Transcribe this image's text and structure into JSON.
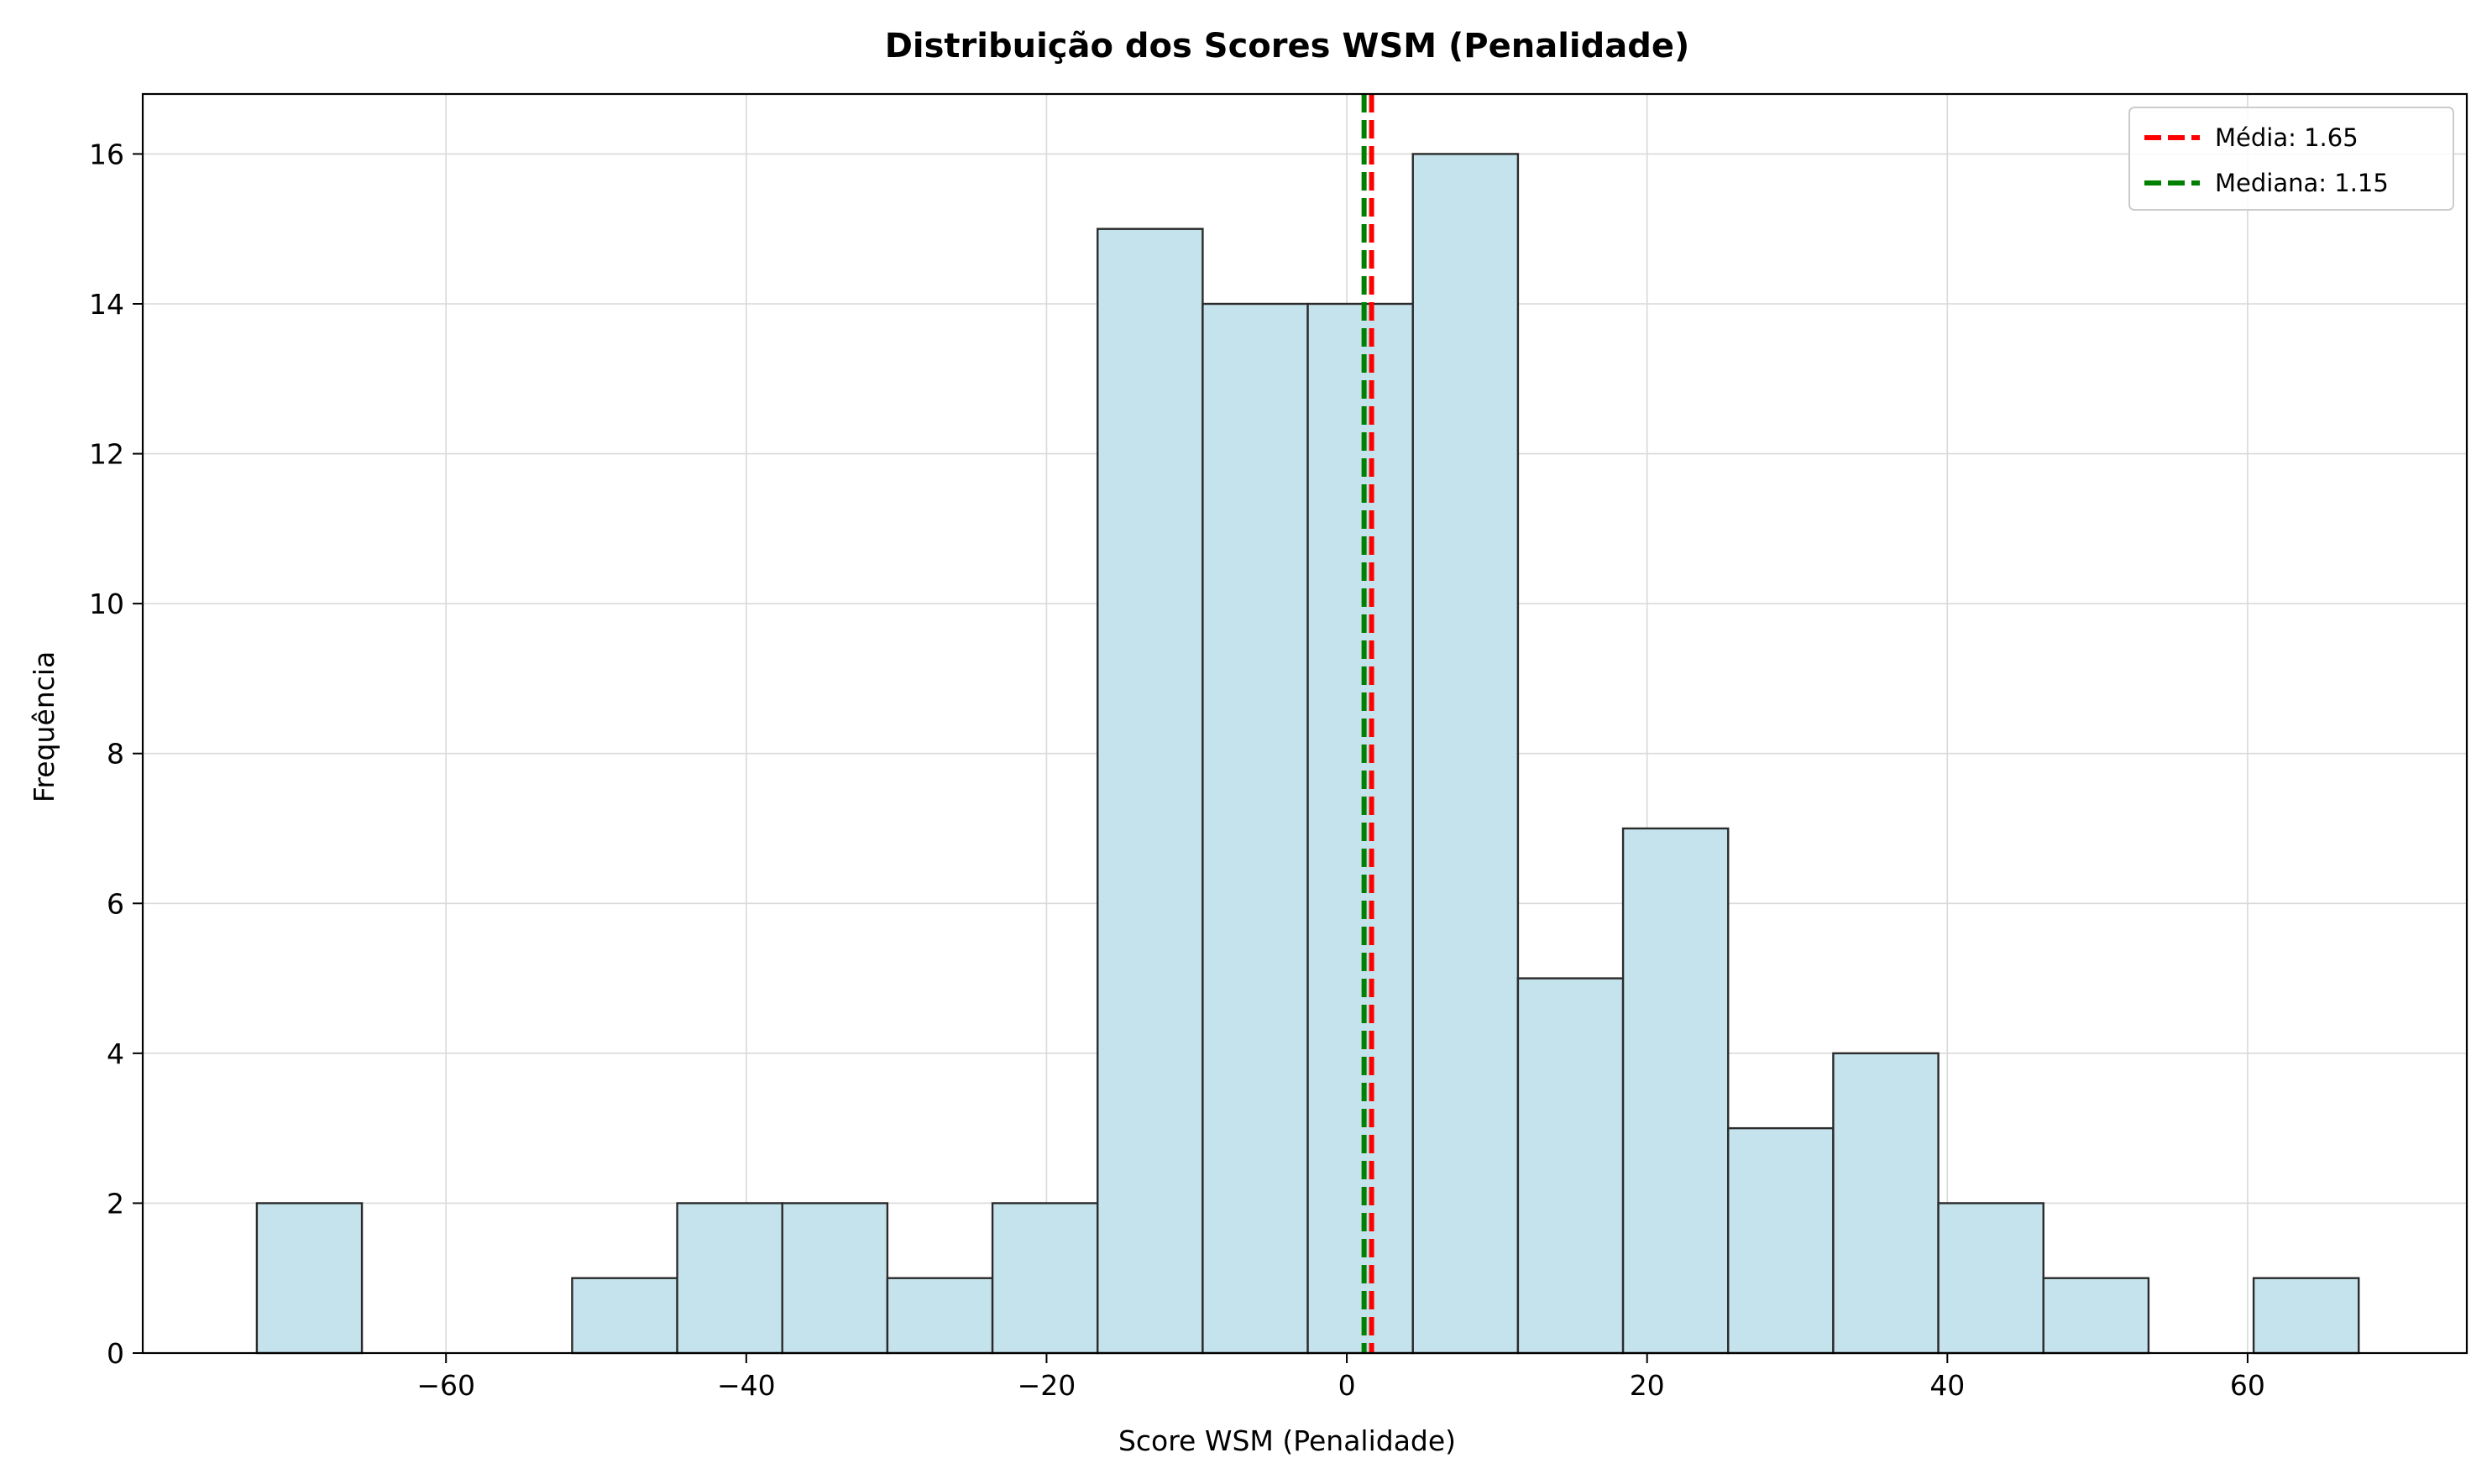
{
  "chart_data": {
    "type": "bar",
    "title": "Distribuição dos Scores WSM (Penalidade)",
    "xlabel": "Score WSM (Penalidade)",
    "ylabel": "Frequência",
    "xlim": [
      -80.2,
      74.6
    ],
    "ylim": [
      0,
      16.8
    ],
    "bin_edges": [
      -72.6,
      -65.6,
      -58.6,
      -51.6,
      -44.6,
      -37.6,
      -30.6,
      -23.6,
      -16.6,
      -9.6,
      -2.6,
      4.4,
      11.4,
      18.4,
      25.4,
      32.4,
      39.4,
      46.4,
      53.4,
      60.4,
      67.4
    ],
    "counts": [
      2,
      0,
      0,
      1,
      2,
      2,
      1,
      2,
      15,
      14,
      14,
      16,
      5,
      7,
      3,
      4,
      2,
      1,
      0,
      1
    ],
    "x_ticks": [
      -60,
      -40,
      -20,
      0,
      20,
      40,
      60
    ],
    "x_tick_labels": [
      "−60",
      "−40",
      "−20",
      "0",
      "20",
      "40",
      "60"
    ],
    "y_ticks": [
      0,
      2,
      4,
      6,
      8,
      10,
      12,
      14,
      16
    ],
    "y_tick_labels": [
      "0",
      "2",
      "4",
      "6",
      "8",
      "10",
      "12",
      "14",
      "16"
    ],
    "grid": true,
    "bar_fill": "#c5e3ec",
    "bar_edge": "#2b2b2b",
    "reference_lines": [
      {
        "label": "Média: 1.65",
        "value": 1.65,
        "color": "#ff0000",
        "style": "dashed"
      },
      {
        "label": "Mediana: 1.15",
        "value": 1.15,
        "color": "#008000",
        "style": "dashed"
      }
    ],
    "legend_position": "top-right"
  }
}
